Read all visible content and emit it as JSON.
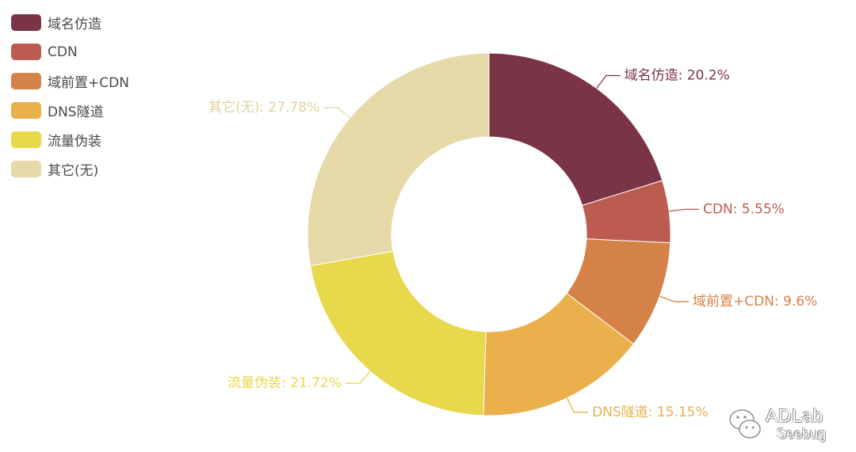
{
  "chart_data": {
    "type": "pie",
    "donut": true,
    "categories": [
      "域名仿造",
      "CDN",
      "域前置+CDN",
      "DNS隧道",
      "流量伪装",
      "其它(无)"
    ],
    "values": [
      20.2,
      5.55,
      9.6,
      15.15,
      21.72,
      27.78
    ],
    "unit": "%",
    "colors": [
      "#7b3346",
      "#bc5b4f",
      "#d48247",
      "#e9b04c",
      "#e8d84c",
      "#e5d9a8"
    ],
    "data_labels": [
      "域名仿造: 20.2%",
      "CDN: 5.55%",
      "域前置+CDN: 9.6%",
      "DNS隧道: 15.15%",
      "流量伪装: 21.72%",
      "其它(无): 27.78%"
    ],
    "legend_position": "top-left",
    "start_angle": "top",
    "direction": "clockwise"
  },
  "watermark": {
    "main": "ADLab",
    "sub": "Seebug"
  }
}
